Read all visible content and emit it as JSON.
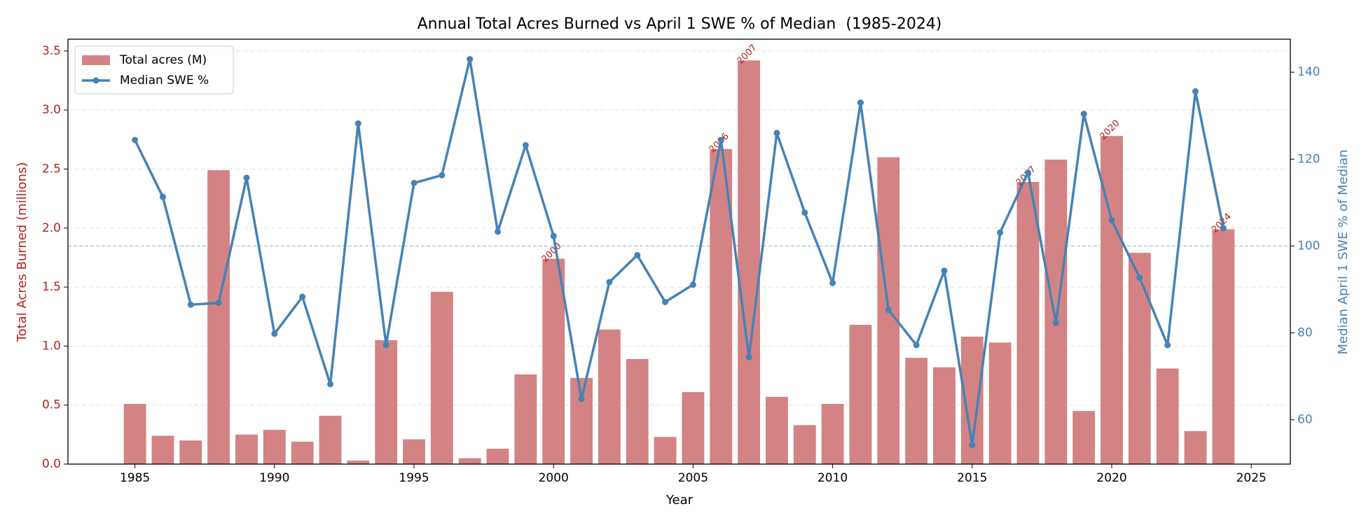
{
  "chart_data": {
    "type": "combo",
    "title": "Annual Total Acres Burned vs April 1 SWE % of Median  (1985-2024)",
    "xlabel": "Year",
    "ylabel": "Total Acres Burned (millions)",
    "y2label": "Median April 1 SWE % of Median",
    "x": [
      1985,
      1986,
      1987,
      1988,
      1989,
      1990,
      1991,
      1992,
      1993,
      1994,
      1995,
      1996,
      1997,
      1998,
      1999,
      2000,
      2001,
      2002,
      2003,
      2004,
      2005,
      2006,
      2007,
      2008,
      2009,
      2010,
      2011,
      2012,
      2013,
      2014,
      2015,
      2016,
      2017,
      2018,
      2019,
      2020,
      2021,
      2022,
      2023,
      2024
    ],
    "series": [
      {
        "name": "Total acres (M)",
        "type": "bar",
        "color": "#d38383",
        "values": [
          0.51,
          0.24,
          0.2,
          2.49,
          0.25,
          0.29,
          0.19,
          0.41,
          0.03,
          1.05,
          0.21,
          1.46,
          0.05,
          0.13,
          0.76,
          1.74,
          0.73,
          1.14,
          0.89,
          0.23,
          0.61,
          2.67,
          3.42,
          0.57,
          0.33,
          0.51,
          1.18,
          2.6,
          0.9,
          0.82,
          1.08,
          1.03,
          2.39,
          2.58,
          0.45,
          2.78,
          1.79,
          0.81,
          0.28,
          1.99
        ]
      },
      {
        "name": "Median SWE %",
        "type": "line",
        "axis": "y2",
        "color": "#4682b4",
        "values": [
          124.4,
          111.3,
          86.5,
          86.9,
          115.7,
          79.8,
          88.3,
          68.2,
          128.2,
          77.2,
          114.5,
          116.3,
          143.0,
          103.3,
          123.2,
          102.3,
          64.8,
          91.7,
          97.9,
          87.1,
          91.1,
          124.4,
          74.4,
          126.0,
          107.7,
          91.5,
          133.0,
          85.3,
          77.2,
          94.3,
          54.2,
          103.1,
          116.9,
          82.3,
          130.4,
          105.9,
          92.7,
          77.2,
          135.6,
          104.1
        ]
      }
    ],
    "highlight_years": [
      2000,
      2006,
      2007,
      2017,
      2020,
      2024
    ],
    "highlight_color": "#b22222",
    "y2_refline": 100,
    "xlim": [
      1982.6,
      2026.4
    ],
    "xticks": [
      1985,
      1990,
      1995,
      2000,
      2005,
      2010,
      2015,
      2020,
      2025
    ],
    "ylim": [
      0,
      3.6
    ],
    "yticks": [
      {
        "value": 0,
        "label": "0.0"
      },
      0.5,
      {
        "value": 1,
        "label": "1.0"
      },
      1.5,
      {
        "value": 2,
        "label": "2.0"
      },
      2.5,
      {
        "value": 3,
        "label": "3.0"
      },
      3.5
    ],
    "y2lim": [
      49.8,
      147.6
    ],
    "y2ticks": [
      60,
      80,
      100,
      120,
      140
    ],
    "ycolor": "#b22222",
    "y2color": "#4682b4",
    "grid": true,
    "legend": "upper left"
  }
}
